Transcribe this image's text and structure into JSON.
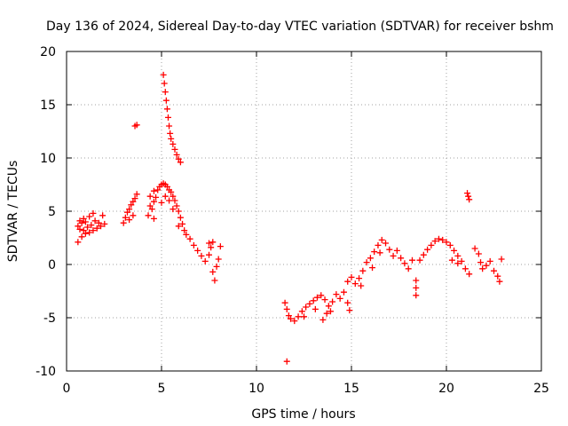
{
  "chart_data": {
    "type": "scatter",
    "title": "Day 136 of 2024, Sidereal Day-to-day VTEC variation (SDTVAR) for receiver bshm",
    "xlabel": "GPS time / hours",
    "ylabel": "SDTVAR / TECUs",
    "xlim": [
      0,
      25
    ],
    "ylim": [
      -10,
      20
    ],
    "xticks": [
      0,
      5,
      10,
      15,
      20,
      25
    ],
    "yticks": [
      -10,
      -5,
      0,
      5,
      10,
      15,
      20
    ],
    "grid": true,
    "marker": "+",
    "marker_color": "#ff0000",
    "series": [
      {
        "name": "SDTVAR",
        "points": [
          [
            0.6,
            2.1
          ],
          [
            0.6,
            3.6
          ],
          [
            0.7,
            3.3
          ],
          [
            0.7,
            4.1
          ],
          [
            0.8,
            2.6
          ],
          [
            0.8,
            3.9
          ],
          [
            0.9,
            3.2
          ],
          [
            0.9,
            4.3
          ],
          [
            1.0,
            2.9
          ],
          [
            1.0,
            4.0
          ],
          [
            1.1,
            3.5
          ],
          [
            1.2,
            3.0
          ],
          [
            1.2,
            4.5
          ],
          [
            1.3,
            3.7
          ],
          [
            1.4,
            3.2
          ],
          [
            1.4,
            4.8
          ],
          [
            1.5,
            4.1
          ],
          [
            1.6,
            3.4
          ],
          [
            1.7,
            3.9
          ],
          [
            1.8,
            3.6
          ],
          [
            1.9,
            4.6
          ],
          [
            2.0,
            3.8
          ],
          [
            3.0,
            3.9
          ],
          [
            3.1,
            4.4
          ],
          [
            3.2,
            4.9
          ],
          [
            3.3,
            5.2
          ],
          [
            3.4,
            5.6
          ],
          [
            3.5,
            5.9
          ],
          [
            3.6,
            6.2
          ],
          [
            3.7,
            6.6
          ],
          [
            3.3,
            4.2
          ],
          [
            3.5,
            4.6
          ],
          [
            3.6,
            13.0
          ],
          [
            3.7,
            13.1
          ],
          [
            4.3,
            4.6
          ],
          [
            4.4,
            5.5
          ],
          [
            4.4,
            6.4
          ],
          [
            4.5,
            5.2
          ],
          [
            4.6,
            5.9
          ],
          [
            4.6,
            6.9
          ],
          [
            4.7,
            6.3
          ],
          [
            4.8,
            7.0
          ],
          [
            4.9,
            7.3
          ],
          [
            5.0,
            7.5
          ],
          [
            5.1,
            7.6
          ],
          [
            5.2,
            7.5
          ],
          [
            5.3,
            7.3
          ],
          [
            5.4,
            7.0
          ],
          [
            5.5,
            6.8
          ],
          [
            5.6,
            6.4
          ],
          [
            5.7,
            6.0
          ],
          [
            5.8,
            5.5
          ],
          [
            5.9,
            5.0
          ],
          [
            6.0,
            4.4
          ],
          [
            6.1,
            3.8
          ],
          [
            6.2,
            3.2
          ],
          [
            6.3,
            2.8
          ],
          [
            6.5,
            2.4
          ],
          [
            6.7,
            1.8
          ],
          [
            6.9,
            1.3
          ],
          [
            7.1,
            0.8
          ],
          [
            7.3,
            0.3
          ],
          [
            7.5,
            0.9
          ],
          [
            7.6,
            1.6
          ],
          [
            7.7,
            -0.7
          ],
          [
            7.8,
            -1.5
          ],
          [
            7.9,
            -0.2
          ],
          [
            8.0,
            0.5
          ],
          [
            8.1,
            1.7
          ],
          [
            7.5,
            2.0
          ],
          [
            7.7,
            2.1
          ],
          [
            5.2,
            6.4
          ],
          [
            5.4,
            6.0
          ],
          [
            5.0,
            5.8
          ],
          [
            4.6,
            4.3
          ],
          [
            5.6,
            5.2
          ],
          [
            5.9,
            3.6
          ],
          [
            5.1,
            17.8
          ],
          [
            5.15,
            17.0
          ],
          [
            5.2,
            16.2
          ],
          [
            5.25,
            15.4
          ],
          [
            5.3,
            14.6
          ],
          [
            5.35,
            13.8
          ],
          [
            5.4,
            13.0
          ],
          [
            5.45,
            12.3
          ],
          [
            5.5,
            11.8
          ],
          [
            5.6,
            11.3
          ],
          [
            5.7,
            10.8
          ],
          [
            5.8,
            10.3
          ],
          [
            5.9,
            9.9
          ],
          [
            6.0,
            9.6
          ],
          [
            11.6,
            -9.1
          ],
          [
            11.5,
            -3.6
          ],
          [
            11.6,
            -4.2
          ],
          [
            11.7,
            -4.8
          ],
          [
            11.8,
            -5.1
          ],
          [
            12.0,
            -5.3
          ],
          [
            12.2,
            -4.9
          ],
          [
            12.4,
            -4.4
          ],
          [
            12.6,
            -4.0
          ],
          [
            12.8,
            -3.7
          ],
          [
            13.0,
            -3.4
          ],
          [
            13.2,
            -3.1
          ],
          [
            13.4,
            -2.9
          ],
          [
            13.6,
            -3.3
          ],
          [
            13.8,
            -3.9
          ],
          [
            13.9,
            -4.4
          ],
          [
            13.5,
            -5.2
          ],
          [
            13.7,
            -4.6
          ],
          [
            14.0,
            -3.5
          ],
          [
            14.2,
            -2.8
          ],
          [
            14.4,
            -3.2
          ],
          [
            14.6,
            -2.6
          ],
          [
            14.8,
            -3.6
          ],
          [
            14.9,
            -4.3
          ],
          [
            12.5,
            -4.9
          ],
          [
            13.1,
            -4.2
          ],
          [
            14.8,
            -1.6
          ],
          [
            15.0,
            -1.2
          ],
          [
            15.2,
            -1.8
          ],
          [
            15.4,
            -1.3
          ],
          [
            15.6,
            -0.6
          ],
          [
            15.8,
            0.2
          ],
          [
            16.0,
            0.6
          ],
          [
            16.2,
            1.2
          ],
          [
            16.4,
            1.8
          ],
          [
            16.6,
            2.3
          ],
          [
            16.8,
            2.0
          ],
          [
            17.0,
            1.4
          ],
          [
            17.2,
            0.8
          ],
          [
            17.4,
            1.3
          ],
          [
            17.6,
            0.6
          ],
          [
            17.8,
            0.1
          ],
          [
            18.0,
            -0.4
          ],
          [
            18.2,
            0.4
          ],
          [
            15.5,
            -2.0
          ],
          [
            16.1,
            -0.3
          ],
          [
            16.5,
            1.1
          ],
          [
            18.4,
            -1.5
          ],
          [
            18.4,
            -2.2
          ],
          [
            18.4,
            -2.9
          ],
          [
            18.6,
            0.4
          ],
          [
            18.8,
            0.9
          ],
          [
            19.0,
            1.4
          ],
          [
            19.2,
            1.8
          ],
          [
            19.4,
            2.2
          ],
          [
            19.6,
            2.4
          ],
          [
            19.8,
            2.3
          ],
          [
            20.0,
            2.1
          ],
          [
            20.2,
            1.8
          ],
          [
            20.4,
            1.3
          ],
          [
            20.6,
            0.8
          ],
          [
            20.8,
            0.3
          ],
          [
            21.0,
            -0.4
          ],
          [
            21.2,
            -0.9
          ],
          [
            20.3,
            0.4
          ],
          [
            20.6,
            0.1
          ],
          [
            21.1,
            6.7
          ],
          [
            21.15,
            6.4
          ],
          [
            21.2,
            6.1
          ],
          [
            21.5,
            1.5
          ],
          [
            21.7,
            1.0
          ],
          [
            21.8,
            0.2
          ],
          [
            21.9,
            -0.4
          ],
          [
            22.1,
            -0.1
          ],
          [
            22.3,
            0.3
          ],
          [
            22.5,
            -0.6
          ],
          [
            22.7,
            -1.1
          ],
          [
            22.8,
            -1.6
          ],
          [
            22.9,
            0.5
          ]
        ]
      }
    ]
  }
}
